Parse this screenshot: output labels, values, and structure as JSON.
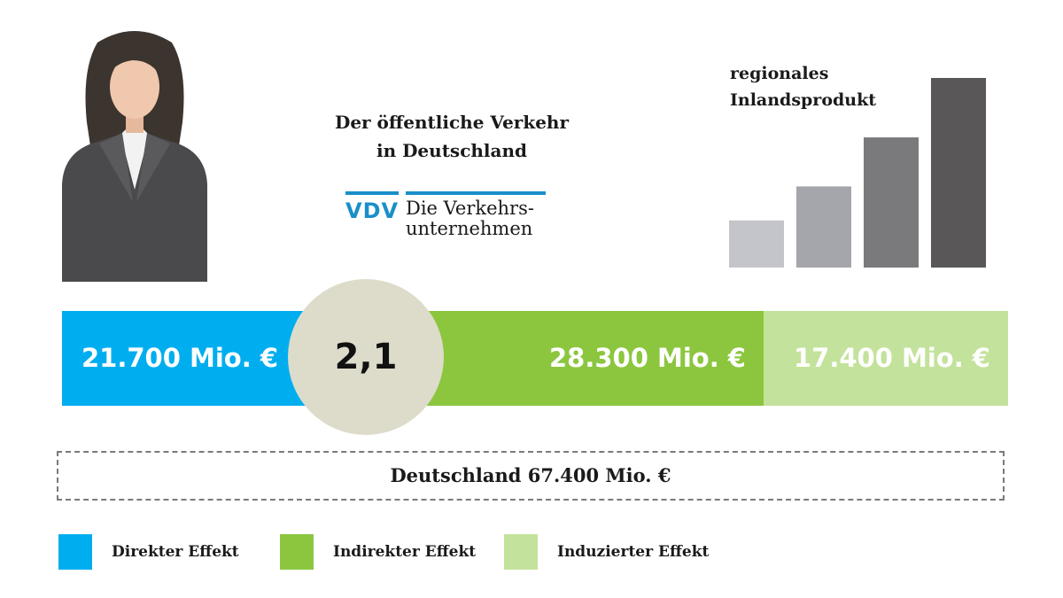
{
  "headline": {
    "line1": "Der öffentliche Verkehr",
    "line2": "in Deutschland"
  },
  "logo": {
    "mark": "VDV",
    "line1": "Die Verkehrs-",
    "line2": "unternehmen"
  },
  "mini_chart": {
    "title_line1": "regionales",
    "title_line2": "Inlandsprodukt"
  },
  "multiplier": "2,1",
  "total_label": "Deutschland 67.400 Mio. €",
  "legend": [
    {
      "label": "Direkter Effekt",
      "color": "#00aeef"
    },
    {
      "label": "Indirekter Effekt",
      "color": "#8cc63f"
    },
    {
      "label": "Induzierter Effekt",
      "color": "#c3e29b"
    }
  ],
  "chart_data": [
    {
      "type": "bar",
      "orientation": "horizontal-stacked",
      "categories": [
        "Direkter Effekt",
        "Indirekter Effekt",
        "Induzierter Effekt"
      ],
      "values": [
        21700,
        28300,
        17400
      ],
      "labels": [
        "21.700 Mio. €",
        "28.300 Mio. €",
        "17.400 Mio. €"
      ],
      "colors": [
        "#00aeef",
        "#8cc63f",
        "#c3e29b"
      ],
      "total": 67400,
      "unit": "Mio. €"
    },
    {
      "type": "bar",
      "title": "regionales Inlandsprodukt",
      "values": [
        1,
        1.72,
        2.76,
        4.02
      ],
      "colors": [
        "#c3c5cb",
        "#a5a6ab",
        "#7a797c",
        "#595758"
      ]
    }
  ]
}
